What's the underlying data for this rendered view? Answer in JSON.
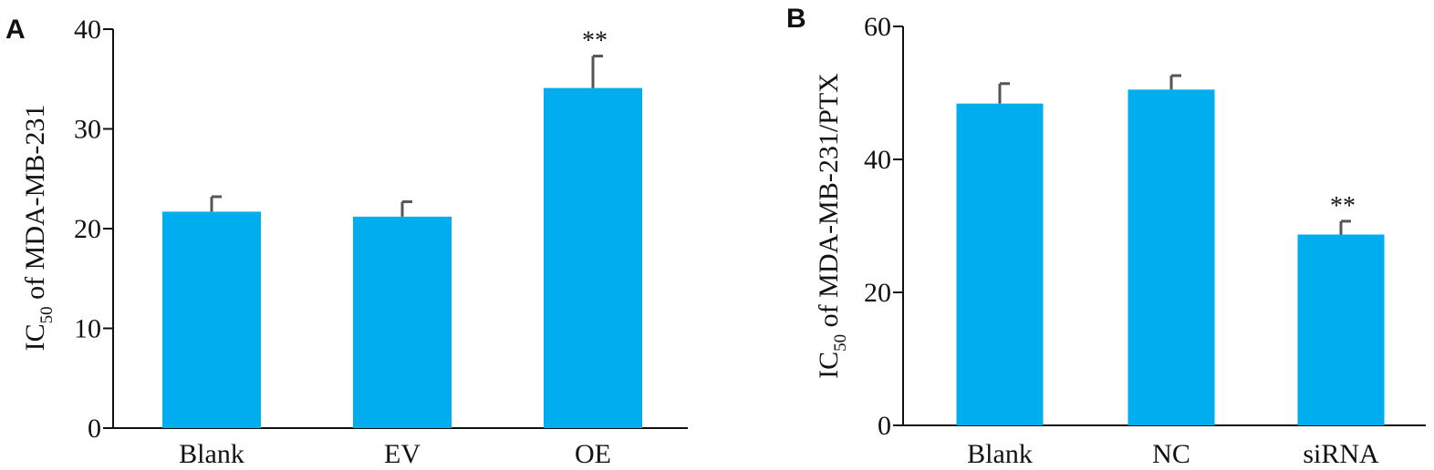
{
  "chart_data": [
    {
      "panel": "A",
      "type": "bar",
      "categories": [
        "Blank",
        "EV",
        "OE"
      ],
      "values": [
        21.7,
        21.2,
        34.1
      ],
      "error": [
        1.5,
        1.5,
        3.2
      ],
      "annotations": [
        "",
        "",
        "**"
      ],
      "ylabel_main": "IC",
      "ylabel_sub": "50",
      "ylabel_rest": " of MDA-MB-231",
      "ylim": [
        0,
        40
      ],
      "yticks": [
        0,
        10,
        20,
        30,
        40
      ],
      "grid": false,
      "bar_color": "#00aeef",
      "error_color": "#555555"
    },
    {
      "panel": "B",
      "type": "bar",
      "categories": [
        "Blank",
        "NC",
        "siRNA"
      ],
      "values": [
        48.4,
        50.5,
        28.7
      ],
      "error": [
        3.0,
        2.1,
        2.0
      ],
      "annotations": [
        "",
        "",
        "**"
      ],
      "ylabel_main": "IC",
      "ylabel_sub": "50",
      "ylabel_rest": " of MDA-MB-231/PTX",
      "ylim": [
        0,
        60
      ],
      "yticks": [
        0,
        20,
        40,
        60
      ],
      "grid": false,
      "bar_color": "#00aeef",
      "error_color": "#555555"
    }
  ]
}
